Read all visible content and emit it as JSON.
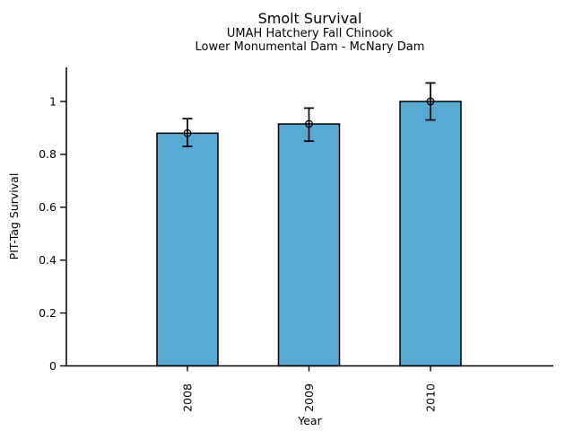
{
  "chart": {
    "title": "Smolt Survival",
    "subtitle_line1": "UMAH Hatchery Fall Chinook",
    "subtitle_line2": "Lower Monumental Dam - McNary Dam",
    "xlabel": "Year",
    "ylabel": "PIT-Tag Survival"
  },
  "chart_data": {
    "type": "bar",
    "title": "Smolt Survival",
    "subtitle_lines": [
      "UMAH Hatchery Fall Chinook",
      "Lower Monumental Dam - McNary Dam"
    ],
    "categories": [
      "2008",
      "2009",
      "2010"
    ],
    "values": [
      0.88,
      0.915,
      1.0
    ],
    "error_low": [
      0.83,
      0.85,
      0.93
    ],
    "error_high": [
      0.935,
      0.975,
      1.07
    ],
    "xlabel": "Year",
    "ylabel": "PIT-Tag Survival",
    "ylim": [
      0,
      1.13
    ],
    "yticks": [
      0,
      0.2,
      0.4,
      0.6,
      0.8,
      1
    ],
    "ytick_labels": [
      "0",
      "0.2",
      "0.4",
      "0.6",
      "0.8",
      "1"
    ],
    "grid": false,
    "legend": null,
    "marker": "open-circle",
    "bar_color": "#58a9d4",
    "bar_edge_color": "#000000",
    "error_bar_color": "#000000",
    "axis_color": "#000000",
    "background_color": "#ffffff"
  }
}
